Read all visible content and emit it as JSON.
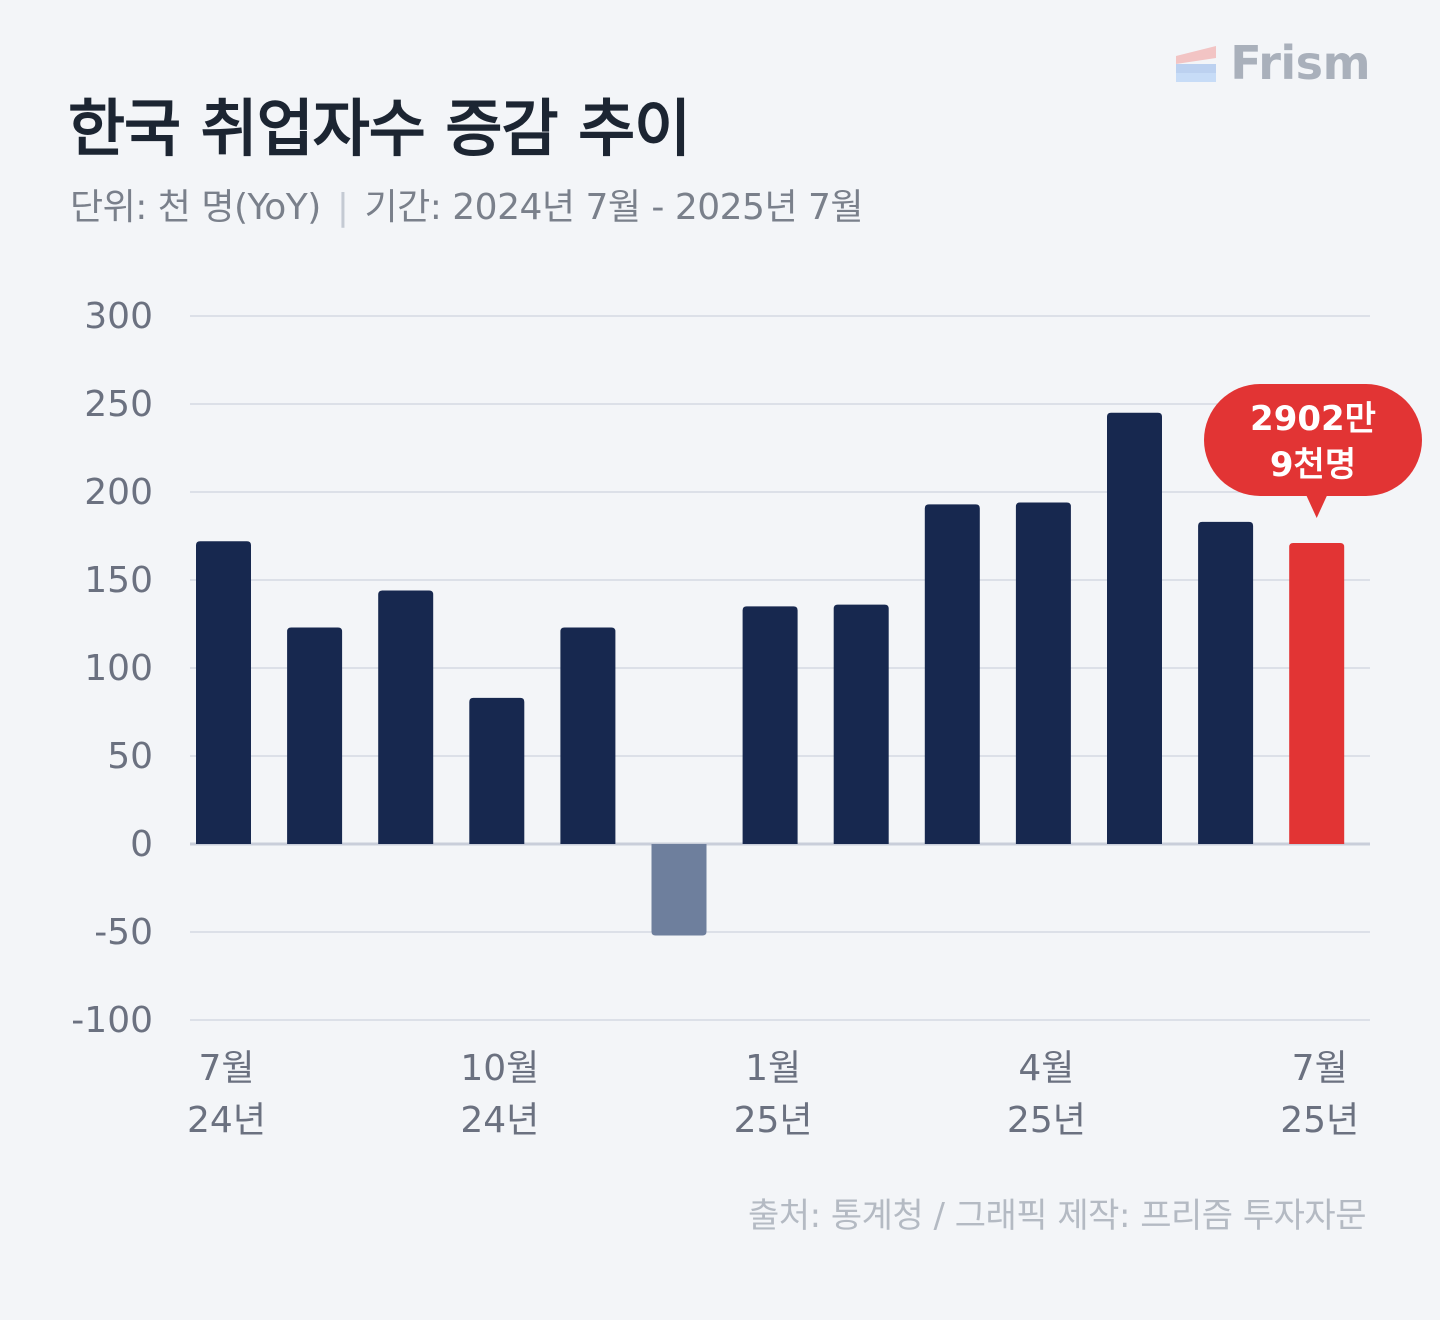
{
  "header": {
    "title": "한국 취업자수 증감 추이",
    "unit": "단위: 천 명(YoY)",
    "separator": "|",
    "period": "기간: 2024년 7월 - 2025년 7월"
  },
  "brand": {
    "name": "Frism"
  },
  "footer": {
    "source": "출처: 통계청 / 그래픽 제작: 프리즘 투자자문"
  },
  "colors": {
    "positive_bar": "#17284f",
    "negative_bar": "#6e7f9d",
    "highlight_bar": "#e23434",
    "grid": "#d5dae2",
    "zero_line": "#c9ceda",
    "tick_text": "#6b7180"
  },
  "chart_data": {
    "type": "bar",
    "title": "한국 취업자수 증감 추이",
    "ylabel": "",
    "xlabel": "",
    "ylim": [
      -100,
      300
    ],
    "yticks": [
      "300",
      "250",
      "200",
      "150",
      "100",
      "50",
      "0",
      "-50",
      "-100"
    ],
    "grid": true,
    "categories": [
      "2024-07",
      "2024-08",
      "2024-09",
      "2024-10",
      "2024-11",
      "2024-12",
      "2025-01",
      "2025-02",
      "2025-03",
      "2025-04",
      "2025-05",
      "2025-06",
      "2025-07"
    ],
    "values": [
      172,
      123,
      144,
      83,
      123,
      -52,
      135,
      136,
      193,
      194,
      245,
      183,
      171
    ],
    "x_tick_labels": [
      {
        "month": "7월",
        "year": "24년",
        "index": 0
      },
      {
        "month": "10월",
        "year": "24년",
        "index": 3
      },
      {
        "month": "1월",
        "year": "25년",
        "index": 6
      },
      {
        "month": "4월",
        "year": "25년",
        "index": 9
      },
      {
        "month": "7월",
        "year": "25년",
        "index": 12
      }
    ],
    "highlight": {
      "index": 12,
      "label_line1": "2902만",
      "label_line2": "9천명"
    }
  }
}
